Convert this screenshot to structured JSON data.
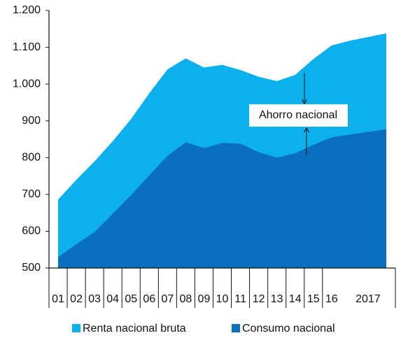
{
  "chart_data": {
    "type": "area",
    "categories": [
      "01",
      "02",
      "03",
      "04",
      "05",
      "06",
      "07",
      "08",
      "09",
      "10",
      "11",
      "12",
      "13",
      "14",
      "15",
      "16",
      null,
      "2017",
      null
    ],
    "series": [
      {
        "name": "Renta nacional bruta",
        "color": "#0bb0ec",
        "values": [
          686,
          740,
          790,
          845,
          905,
          975,
          1040,
          1070,
          1045,
          1052,
          1038,
          1020,
          1008,
          1025,
          1068,
          1105,
          1118,
          1128,
          1138
        ]
      },
      {
        "name": "Consumo nacional",
        "color": "#0b6fbf",
        "values": [
          530,
          565,
          598,
          648,
          698,
          752,
          805,
          842,
          826,
          840,
          838,
          815,
          800,
          812,
          835,
          855,
          863,
          870,
          877
        ]
      }
    ],
    "annotation": "Ahorro nacional",
    "ylim": [
      500,
      1200
    ],
    "yticks": [
      {
        "value": 500,
        "label": "500"
      },
      {
        "value": 600,
        "label": "600"
      },
      {
        "value": 700,
        "label": "700"
      },
      {
        "value": 800,
        "label": "800"
      },
      {
        "value": 900,
        "label": "900"
      },
      {
        "value": 1000,
        "label": "1.000"
      },
      {
        "value": 1100,
        "label": "1.100"
      },
      {
        "value": 1200,
        "label": "1.200"
      }
    ],
    "grid": false
  }
}
